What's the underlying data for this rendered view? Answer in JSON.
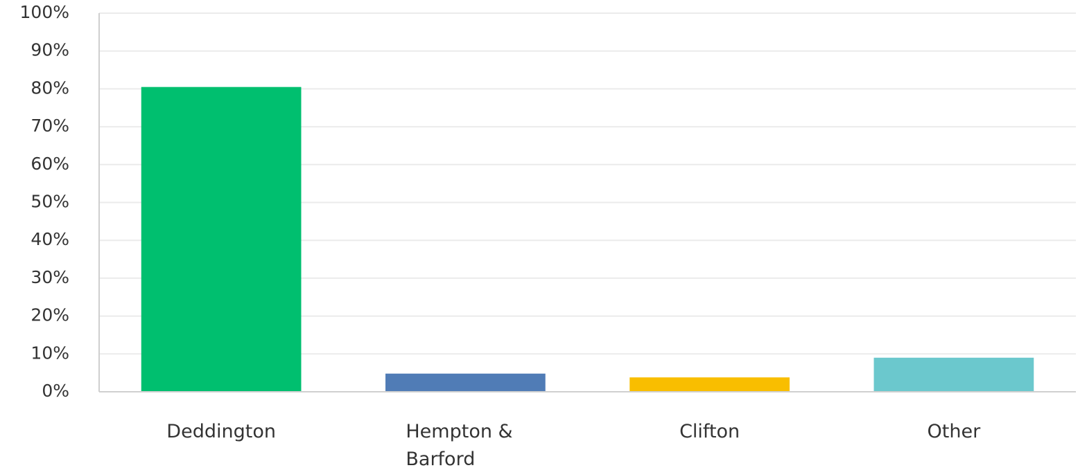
{
  "chart_data": {
    "type": "bar",
    "categories": [
      "Deddington",
      "Hempton & Barford",
      "Clifton",
      "Other"
    ],
    "category_label_lines": [
      [
        "Deddington"
      ],
      [
        "Hempton &",
        "Barford"
      ],
      [
        "Clifton"
      ],
      [
        "Other"
      ]
    ],
    "values": [
      80.5,
      4.8,
      3.8,
      9.0
    ],
    "unit": "%",
    "ylim": [
      0,
      100
    ],
    "yticks": [
      0,
      10,
      20,
      30,
      40,
      50,
      60,
      70,
      80,
      90,
      100
    ],
    "ytick_labels": [
      "0%",
      "10%",
      "20%",
      "30%",
      "40%",
      "50%",
      "60%",
      "70%",
      "80%",
      "90%",
      "100%"
    ],
    "colors": [
      "#00bf6f",
      "#507cb6",
      "#f9be00",
      "#6bc8cd"
    ],
    "grid": true,
    "legend": "none",
    "title": "",
    "xlabel": "",
    "ylabel": ""
  }
}
